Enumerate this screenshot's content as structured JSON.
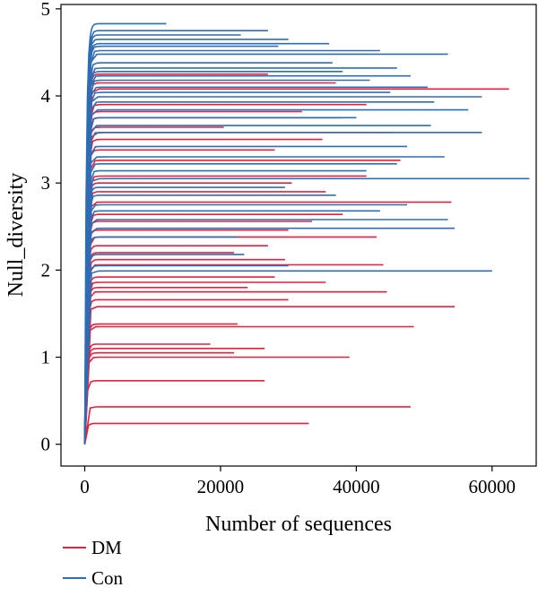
{
  "chart_data": {
    "type": "line",
    "xlabel": "Number of sequences",
    "ylabel": "Null_diversity",
    "xlim": [
      -3500,
      66500
    ],
    "ylim": [
      -0.25,
      5.05
    ],
    "x_ticks": [
      0,
      20000,
      40000,
      60000
    ],
    "x_tick_labels": [
      "0",
      "20000",
      "40000",
      "60000"
    ],
    "y_ticks": [
      0,
      1,
      2,
      3,
      4,
      5
    ],
    "y_tick_labels": [
      "0",
      "1",
      "2",
      "3",
      "4",
      "5"
    ],
    "grid": false,
    "legend_position": "bottom-left",
    "series": [
      {
        "name": "DM",
        "color": "#E8203C",
        "curves": [
          {
            "max_x": 33000,
            "plateau": 0.24
          },
          {
            "max_x": 48000,
            "plateau": 0.43
          },
          {
            "max_x": 26500,
            "plateau": 0.73
          },
          {
            "max_x": 39000,
            "plateau": 1.0
          },
          {
            "max_x": 22000,
            "plateau": 1.05
          },
          {
            "max_x": 26500,
            "plateau": 1.1
          },
          {
            "max_x": 18500,
            "plateau": 1.15
          },
          {
            "max_x": 48500,
            "plateau": 1.35
          },
          {
            "max_x": 22500,
            "plateau": 1.38
          },
          {
            "max_x": 54500,
            "plateau": 1.58
          },
          {
            "max_x": 30000,
            "plateau": 1.66
          },
          {
            "max_x": 44500,
            "plateau": 1.75
          },
          {
            "max_x": 24000,
            "plateau": 1.8
          },
          {
            "max_x": 35500,
            "plateau": 1.86
          },
          {
            "max_x": 28000,
            "plateau": 1.92
          },
          {
            "max_x": 44000,
            "plateau": 2.06
          },
          {
            "max_x": 29500,
            "plateau": 2.12
          },
          {
            "max_x": 22000,
            "plateau": 2.2
          },
          {
            "max_x": 27000,
            "plateau": 2.28
          },
          {
            "max_x": 43000,
            "plateau": 2.38
          },
          {
            "max_x": 30000,
            "plateau": 2.46
          },
          {
            "max_x": 33500,
            "plateau": 2.56
          },
          {
            "max_x": 38000,
            "plateau": 2.64
          },
          {
            "max_x": 54000,
            "plateau": 2.78
          },
          {
            "max_x": 35500,
            "plateau": 2.9
          },
          {
            "max_x": 30500,
            "plateau": 3.0
          },
          {
            "max_x": 41500,
            "plateau": 3.08
          },
          {
            "max_x": 46500,
            "plateau": 3.26
          },
          {
            "max_x": 28000,
            "plateau": 3.38
          },
          {
            "max_x": 35000,
            "plateau": 3.5
          },
          {
            "max_x": 45500,
            "plateau": 3.58
          },
          {
            "max_x": 20500,
            "plateau": 3.64
          },
          {
            "max_x": 38000,
            "plateau": 3.75
          },
          {
            "max_x": 32000,
            "plateau": 3.82
          },
          {
            "max_x": 41500,
            "plateau": 3.9
          },
          {
            "max_x": 62500,
            "plateau": 4.08
          },
          {
            "max_x": 37000,
            "plateau": 4.15
          },
          {
            "max_x": 27000,
            "plateau": 4.25
          }
        ]
      },
      {
        "name": "Con",
        "color": "#2E6DB4",
        "curves": [
          {
            "max_x": 60000,
            "plateau": 1.99
          },
          {
            "max_x": 30000,
            "plateau": 2.05
          },
          {
            "max_x": 23500,
            "plateau": 2.18
          },
          {
            "max_x": 22500,
            "plateau": 2.38
          },
          {
            "max_x": 54500,
            "plateau": 2.48
          },
          {
            "max_x": 53500,
            "plateau": 2.58
          },
          {
            "max_x": 43500,
            "plateau": 2.68
          },
          {
            "max_x": 47500,
            "plateau": 2.75
          },
          {
            "max_x": 37000,
            "plateau": 2.86
          },
          {
            "max_x": 29500,
            "plateau": 2.95
          },
          {
            "max_x": 65500,
            "plateau": 3.05
          },
          {
            "max_x": 41500,
            "plateau": 3.14
          },
          {
            "max_x": 46000,
            "plateau": 3.22
          },
          {
            "max_x": 53000,
            "plateau": 3.3
          },
          {
            "max_x": 47500,
            "plateau": 3.42
          },
          {
            "max_x": 58500,
            "plateau": 3.58
          },
          {
            "max_x": 51000,
            "plateau": 3.66
          },
          {
            "max_x": 40000,
            "plateau": 3.75
          },
          {
            "max_x": 56500,
            "plateau": 3.84
          },
          {
            "max_x": 51500,
            "plateau": 3.93
          },
          {
            "max_x": 58500,
            "plateau": 3.99
          },
          {
            "max_x": 45000,
            "plateau": 4.04
          },
          {
            "max_x": 50500,
            "plateau": 4.1
          },
          {
            "max_x": 42000,
            "plateau": 4.18
          },
          {
            "max_x": 48000,
            "plateau": 4.23
          },
          {
            "max_x": 38000,
            "plateau": 4.28
          },
          {
            "max_x": 46000,
            "plateau": 4.32
          },
          {
            "max_x": 36500,
            "plateau": 4.38
          },
          {
            "max_x": 53500,
            "plateau": 4.48
          },
          {
            "max_x": 43500,
            "plateau": 4.52
          },
          {
            "max_x": 28500,
            "plateau": 4.57
          },
          {
            "max_x": 36000,
            "plateau": 4.6
          },
          {
            "max_x": 30000,
            "plateau": 4.65
          },
          {
            "max_x": 23000,
            "plateau": 4.7
          },
          {
            "max_x": 27000,
            "plateau": 4.75
          },
          {
            "max_x": 12000,
            "plateau": 4.83
          }
        ]
      }
    ]
  }
}
